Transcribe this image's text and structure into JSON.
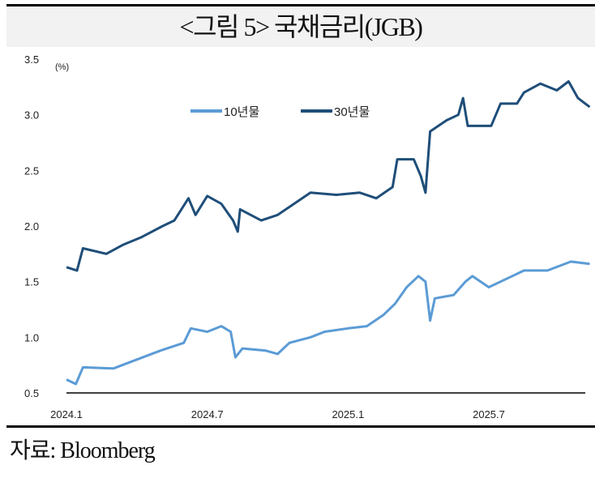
{
  "title": "<그림 5> 국채금리(JGB)",
  "source": "자료: Bloomberg",
  "chart_data": {
    "type": "line",
    "title": "<그림 5> 국채금리(JGB)",
    "ylabel": "(%)",
    "xlabel": "",
    "ylim": [
      0.5,
      3.5
    ],
    "yticks": [
      "3.5",
      "3.0",
      "2.5",
      "2.0",
      "1.5",
      "1.0",
      "0.5"
    ],
    "ytick_values": [
      3.5,
      3.0,
      2.5,
      2.0,
      1.5,
      1.0,
      0.5
    ],
    "xticks": [
      "2024.1",
      "2024.7",
      "2025.1",
      "2025.7"
    ],
    "xtick_months": [
      0,
      6,
      12,
      18
    ],
    "x_unit": "months since 2024.1",
    "xlim": [
      0,
      22.4
    ],
    "legend": {
      "placement": "top-center"
    },
    "colors": {
      "10y": "#5b9bd5",
      "30y": "#1f4e79"
    },
    "series": [
      {
        "name": "10년물",
        "key": "10y",
        "x": [
          0,
          0.4,
          0.7,
          2,
          3,
          4,
          5,
          5.3,
          6,
          6.6,
          7,
          7.2,
          7.5,
          8.5,
          9,
          9.5,
          10.4,
          11,
          12,
          12.8,
          13.5,
          14,
          14.5,
          15,
          15.3,
          15.5,
          15.7,
          16.5,
          17,
          17.3,
          18,
          19,
          19.5,
          20.5,
          21.5,
          22.3
        ],
        "values": [
          0.62,
          0.58,
          0.73,
          0.72,
          0.8,
          0.88,
          0.95,
          1.08,
          1.05,
          1.1,
          1.05,
          0.82,
          0.9,
          0.88,
          0.85,
          0.95,
          1.0,
          1.05,
          1.08,
          1.1,
          1.2,
          1.3,
          1.45,
          1.55,
          1.5,
          1.15,
          1.35,
          1.38,
          1.5,
          1.55,
          1.45,
          1.55,
          1.6,
          1.6,
          1.68,
          1.66
        ]
      },
      {
        "name": "30년물",
        "key": "30y",
        "x": [
          0,
          0.45,
          0.7,
          1.7,
          2.4,
          3.2,
          4.1,
          4.6,
          5.2,
          5.5,
          6,
          6.6,
          7.1,
          7.3,
          7.4,
          8.3,
          9,
          9.7,
          10.4,
          11.5,
          12.5,
          13.2,
          13.9,
          14.1,
          14.8,
          15.1,
          15.3,
          15.5,
          16.2,
          16.7,
          16.9,
          17.1,
          18.1,
          18.5,
          19.2,
          19.5,
          20.2,
          20.9,
          21.4,
          21.8,
          22.3
        ],
        "values": [
          1.63,
          1.6,
          1.8,
          1.75,
          1.83,
          1.9,
          2.0,
          2.05,
          2.25,
          2.1,
          2.27,
          2.2,
          2.05,
          1.95,
          2.15,
          2.05,
          2.1,
          2.2,
          2.3,
          2.28,
          2.3,
          2.25,
          2.35,
          2.6,
          2.6,
          2.45,
          2.3,
          2.85,
          2.95,
          3.0,
          3.15,
          2.9,
          2.9,
          3.1,
          3.1,
          3.2,
          3.28,
          3.22,
          3.3,
          3.15,
          3.07
        ]
      }
    ]
  }
}
